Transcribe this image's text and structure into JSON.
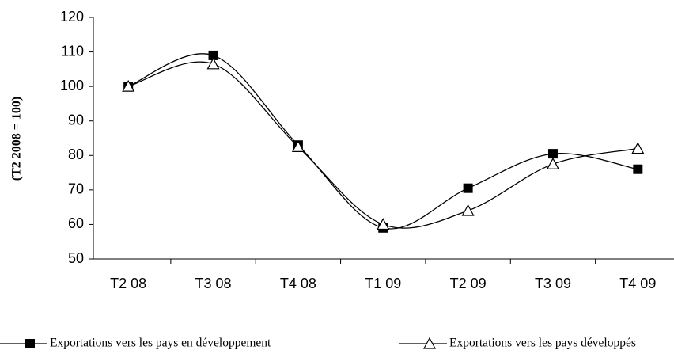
{
  "chart_data": {
    "type": "line",
    "y_label": "(T2 2008 = 100)",
    "categories": [
      "T2 08",
      "T3 08",
      "T4 08",
      "T1 09",
      "T2 09",
      "T3 09",
      "T4 09"
    ],
    "series": [
      {
        "name": "Exportations vers les pays en développement",
        "color": "#000000",
        "marker": "square",
        "values": [
          100,
          109,
          83,
          59,
          70.5,
          80.5,
          76
        ]
      },
      {
        "name": "Exportations vers les pays développés",
        "color": "#000000",
        "marker": "triangle",
        "values": [
          100,
          106.5,
          82.5,
          60,
          64,
          77.5,
          82
        ]
      }
    ],
    "ylim": [
      50,
      120
    ],
    "yticks": [
      50,
      60,
      70,
      80,
      90,
      100,
      110,
      120
    ],
    "smooth": true,
    "legend": "bottom"
  }
}
